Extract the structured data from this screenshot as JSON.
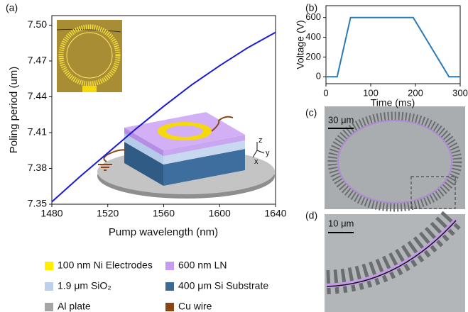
{
  "chart_data": [
    {
      "type": "line",
      "panel_label": "(a)",
      "x_label": "Pump wavelength (nm)",
      "y_label": "Poling period (um)",
      "x": [
        1480,
        1500,
        1520,
        1540,
        1560,
        1580,
        1600,
        1620,
        1640
      ],
      "values": [
        7.352,
        7.373,
        7.393,
        7.413,
        7.432,
        7.45,
        7.466,
        7.481,
        7.494
      ],
      "color": "#1a1ad6",
      "xlim": [
        1480,
        1640
      ],
      "xticks": [
        1480,
        1520,
        1560,
        1600,
        1640
      ],
      "ylim": [
        7.35,
        7.508
      ],
      "yticks": [
        7.35,
        7.38,
        7.41,
        7.44,
        7.47,
        {
          "value": 7.5,
          "label": "7.50"
        }
      ]
    },
    {
      "type": "line",
      "panel_label": "(b)",
      "x_label": "Time (ms)",
      "y_label": "Voltage (V)",
      "x": [
        0,
        25,
        55,
        195,
        275,
        300
      ],
      "values": [
        0,
        0,
        600,
        600,
        0,
        0
      ],
      "color": "#2a7ab8",
      "xlim": [
        0,
        300
      ],
      "xticks": [
        0,
        100,
        200,
        300
      ],
      "ylim": [
        -70,
        720
      ],
      "yticks": [
        0,
        200,
        400,
        600
      ]
    }
  ],
  "panels": {
    "c": {
      "label": "(c)",
      "scale_bar": "30 μm"
    },
    "d": {
      "label": "(d)",
      "scale_bar": "10 μm"
    }
  },
  "schematic_axes": [
    "z",
    "y",
    "x"
  ],
  "legend": [
    {
      "label": "100 nm Ni Electrodes",
      "color": "#ffee00"
    },
    {
      "label": "600 nm LN",
      "color": "#c79cf0"
    },
    {
      "label": "1.9 μm SiO₂",
      "color": "#bcd0ee"
    },
    {
      "label": "400 μm Si Substrate",
      "color": "#3b6a96"
    },
    {
      "label": "Al plate",
      "color": "#a6a6a6"
    },
    {
      "label": "Cu wire",
      "color": "#8b4513"
    }
  ]
}
